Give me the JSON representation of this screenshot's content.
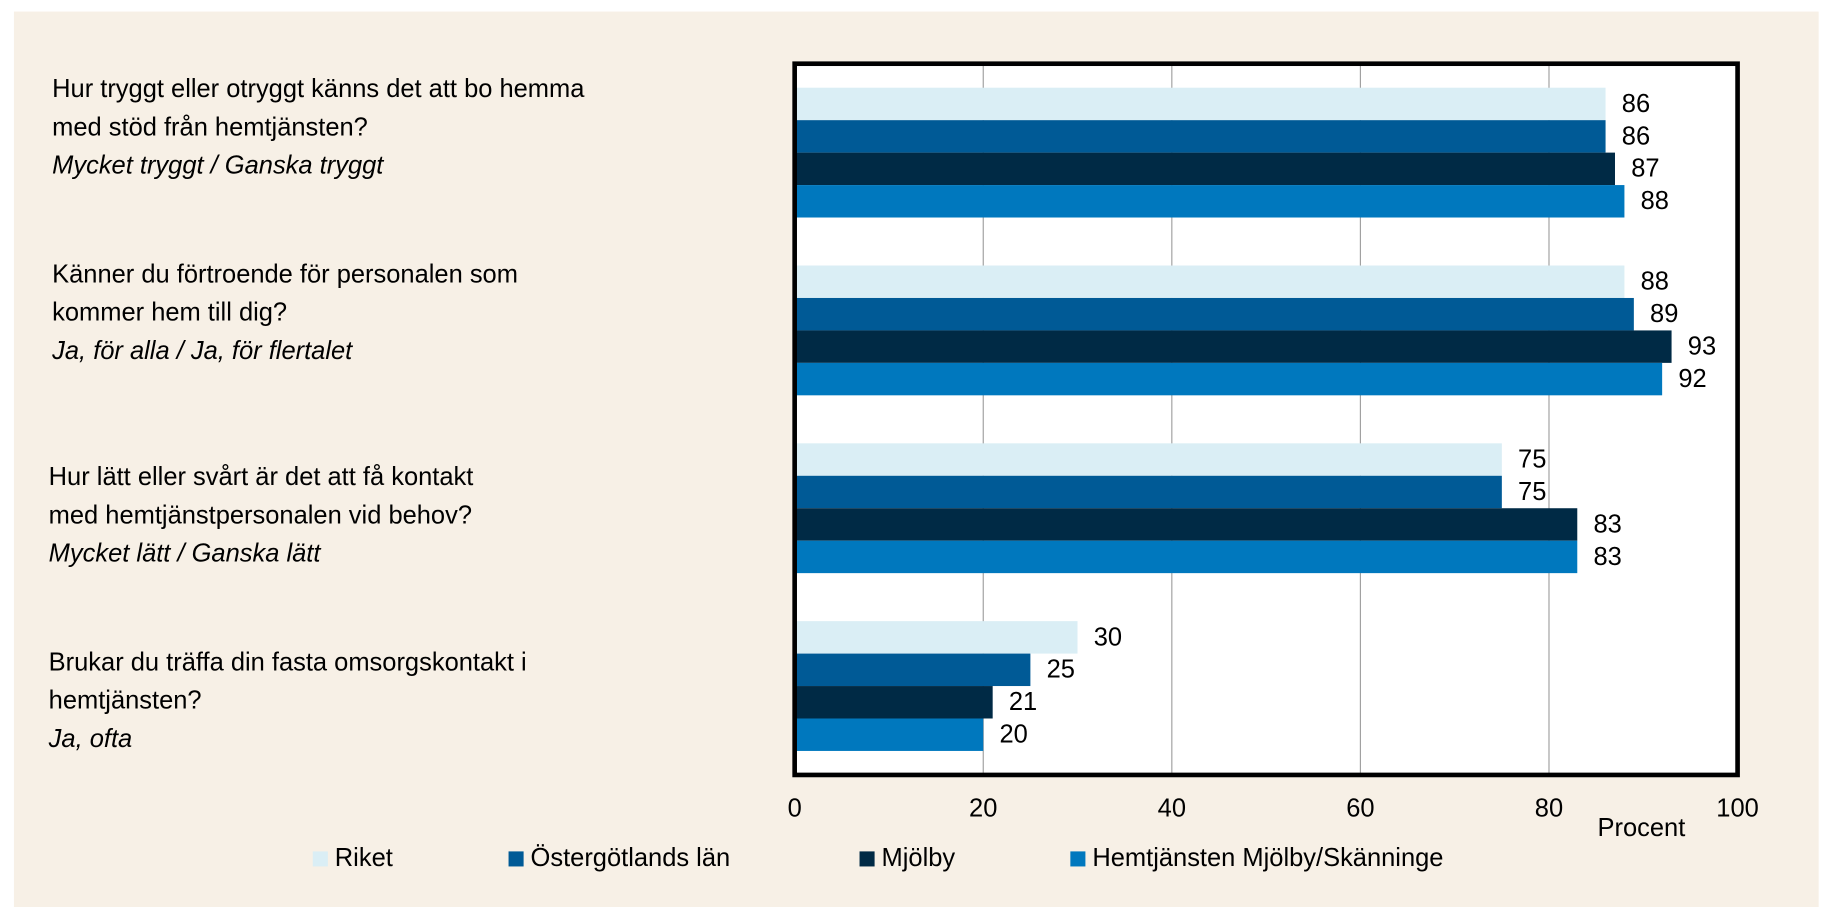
{
  "chart_data": {
    "type": "barh",
    "categories": [
      {
        "lines": [
          "Hur tryggt eller otryggt känns det att bo hemma",
          "med stöd från hemtjänsten?"
        ],
        "answer": "Mycket tryggt / Ganska tryggt"
      },
      {
        "lines": [
          "Känner du förtroende för personalen som",
          "kommer hem till dig?"
        ],
        "answer": "Ja, för alla / Ja, för flertalet"
      },
      {
        "lines": [
          "Hur lätt eller svårt är det att få kontakt",
          "med hemtjänstpersonalen vid behov?"
        ],
        "answer": "Mycket lätt / Ganska lätt"
      },
      {
        "lines": [
          "Brukar du träffa din fasta omsorgskontakt i",
          "hemtjänsten?"
        ],
        "answer": "Ja, ofta"
      }
    ],
    "series": [
      {
        "name": "Riket",
        "color": "#daeef5",
        "values": [
          86,
          88,
          75,
          30
        ]
      },
      {
        "name": "Östergötlands län",
        "color": "#005a96",
        "values": [
          86,
          89,
          75,
          25
        ]
      },
      {
        "name": "Mjölby",
        "color": "#002a45",
        "values": [
          87,
          93,
          83,
          21
        ]
      },
      {
        "name": "Hemtjänsten Mjölby/Skänninge",
        "color": "#0078be",
        "values": [
          88,
          92,
          83,
          20
        ]
      }
    ],
    "xlim": [
      0,
      100
    ],
    "xticks": [
      0,
      20,
      40,
      60,
      80,
      100
    ],
    "xlabel": "Procent",
    "grid": true,
    "legend": "bottom"
  }
}
